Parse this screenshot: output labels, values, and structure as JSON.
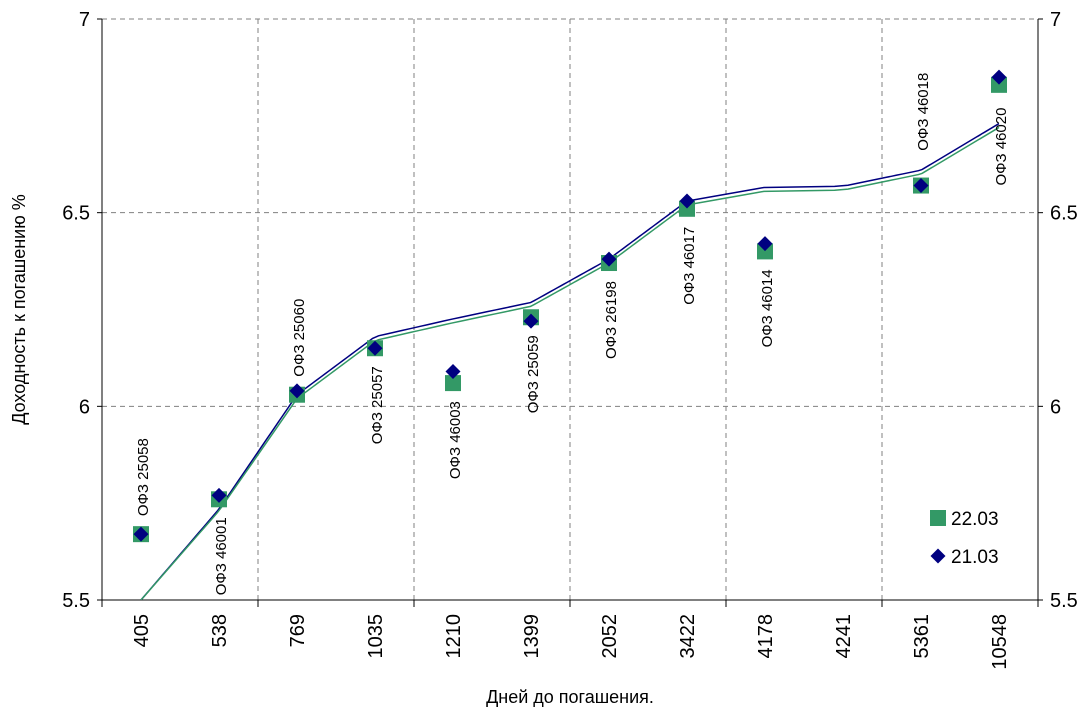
{
  "chart_data": {
    "type": "scatter",
    "xlabel": "Дней до погашения.",
    "ylabel": "Доходность к погашению %",
    "ylim": [
      5.5,
      7
    ],
    "y_ticks": [
      "5.5",
      "6",
      "6.5",
      "7"
    ],
    "grid": true,
    "categories": [
      "405",
      "538",
      "769",
      "1035",
      "1210",
      "1399",
      "2052",
      "3422",
      "4178",
      "4241",
      "5361",
      "10548"
    ],
    "series": [
      {
        "name": "22.03",
        "marker": "square",
        "color": "#339966",
        "points": [
          {
            "x": "405",
            "y": 5.67
          },
          {
            "x": "538",
            "y": 5.76
          },
          {
            "x": "769",
            "y": 6.03
          },
          {
            "x": "1035",
            "y": 6.15
          },
          {
            "x": "1210",
            "y": 6.06
          },
          {
            "x": "1399",
            "y": 6.23
          },
          {
            "x": "2052",
            "y": 6.37
          },
          {
            "x": "3422",
            "y": 6.51
          },
          {
            "x": "4178",
            "y": 6.4
          },
          {
            "x": "5361",
            "y": 6.57
          },
          {
            "x": "10548",
            "y": 6.83
          }
        ]
      },
      {
        "name": "21.03",
        "marker": "diamond",
        "color": "#000080",
        "points": [
          {
            "x": "405",
            "y": 5.67
          },
          {
            "x": "538",
            "y": 5.77
          },
          {
            "x": "769",
            "y": 6.04
          },
          {
            "x": "1035",
            "y": 6.15
          },
          {
            "x": "1210",
            "y": 6.09
          },
          {
            "x": "1399",
            "y": 6.22
          },
          {
            "x": "2052",
            "y": 6.38
          },
          {
            "x": "3422",
            "y": 6.53
          },
          {
            "x": "4178",
            "y": 6.42
          },
          {
            "x": "5361",
            "y": 6.57
          },
          {
            "x": "10548",
            "y": 6.85
          }
        ]
      }
    ],
    "trendlines": [
      {
        "type": "logarithmic",
        "color": "#000080",
        "points": [
          [
            405,
            5.5
          ],
          [
            769,
            6.03
          ],
          [
            1035,
            6.18
          ],
          [
            3422,
            6.53
          ],
          [
            10548,
            6.73
          ]
        ]
      },
      {
        "type": "logarithmic",
        "color": "#339966",
        "points": [
          [
            405,
            5.5
          ],
          [
            769,
            6.02
          ],
          [
            1035,
            6.17
          ],
          [
            3422,
            6.52
          ],
          [
            10548,
            6.72
          ]
        ]
      }
    ],
    "annotations": [
      {
        "x": "405",
        "text": "ОФЗ 25058"
      },
      {
        "x": "538",
        "text": "ОФЗ 46001"
      },
      {
        "x": "769",
        "text": "ОФЗ 25060"
      },
      {
        "x": "1035",
        "text": "ОФЗ 25057"
      },
      {
        "x": "1210",
        "text": "ОФЗ 46003"
      },
      {
        "x": "1399",
        "text": "ОФЗ 25059"
      },
      {
        "x": "2052",
        "text": "ОФЗ 26198"
      },
      {
        "x": "3422",
        "text": "ОФЗ 46017"
      },
      {
        "x": "4178",
        "text": "ОФЗ 46014"
      },
      {
        "x": "5361",
        "text": "ОФЗ 46018"
      },
      {
        "x": "10548",
        "text": "ОФЗ 46020"
      }
    ],
    "legend_position": "bottom-right"
  }
}
